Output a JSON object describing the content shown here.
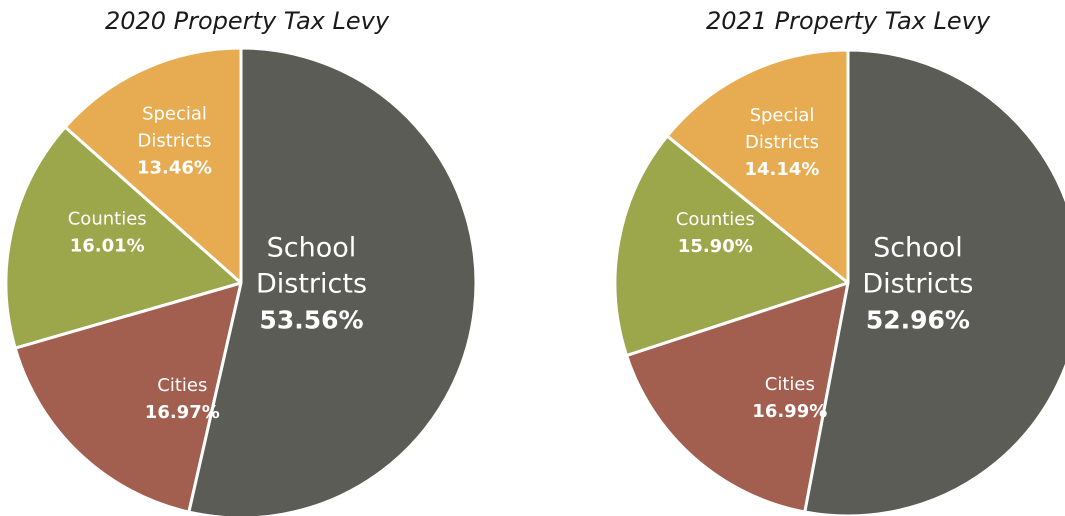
{
  "chart_data": [
    {
      "type": "pie",
      "title": "2020 Property Tax Levy",
      "slices": [
        {
          "category": "school",
          "label": [
            "School",
            "Districts"
          ],
          "value_label": "53.56%",
          "value": 53.56,
          "color": "#5c5c57"
        },
        {
          "category": "cities",
          "label": [
            "Cities"
          ],
          "value_label": "16.97%",
          "value": 16.97,
          "color": "#a25f4f"
        },
        {
          "category": "counties",
          "label": [
            "Counties"
          ],
          "value_label": "16.01%",
          "value": 16.01,
          "color": "#9ca64a"
        },
        {
          "category": "special",
          "label": [
            "Special",
            "Districts"
          ],
          "value_label": "13.46%",
          "value": 13.46,
          "color": "#e7ac52"
        }
      ]
    },
    {
      "type": "pie",
      "title": "2021 Property Tax Levy",
      "slices": [
        {
          "category": "school",
          "label": [
            "School",
            "Districts"
          ],
          "value_label": "52.96%",
          "value": 52.96,
          "color": "#5c5c57"
        },
        {
          "category": "cities",
          "label": [
            "Cities"
          ],
          "value_label": "16.99%",
          "value": 16.99,
          "color": "#a25f4f"
        },
        {
          "category": "counties",
          "label": [
            "Counties"
          ],
          "value_label": "15.90%",
          "value": 15.9,
          "color": "#9ca64a"
        },
        {
          "category": "special",
          "label": [
            "Special",
            "Districts"
          ],
          "value_label": "14.14%",
          "value": 14.14,
          "color": "#e7ac52"
        }
      ]
    }
  ]
}
